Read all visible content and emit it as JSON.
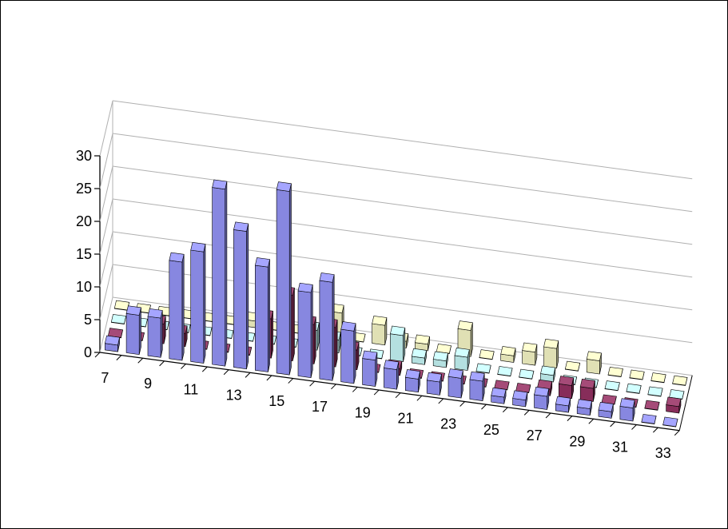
{
  "chart_data": {
    "type": "bar",
    "subtype": "3d-clustered-depth",
    "title": "",
    "xlabel": "",
    "ylabel": "",
    "ylim": [
      0,
      30
    ],
    "yticks": [
      0,
      5,
      10,
      15,
      20,
      25,
      30
    ],
    "grid": true,
    "legend": "none",
    "categories": [
      7,
      8,
      9,
      10,
      11,
      12,
      13,
      14,
      15,
      16,
      17,
      18,
      19,
      20,
      21,
      22,
      23,
      24,
      25,
      26,
      27,
      28,
      29,
      30,
      31,
      32,
      33
    ],
    "x_tick_labels": [
      "7",
      "9",
      "11",
      "13",
      "15",
      "17",
      "19",
      "21",
      "23",
      "25",
      "27",
      "29",
      "31",
      "33"
    ],
    "series": [
      {
        "color": "#9999FF",
        "values": [
          1,
          6,
          6,
          15,
          17,
          27,
          21,
          16,
          28,
          13,
          15,
          8,
          4,
          3,
          2,
          2,
          3,
          3,
          1,
          1,
          2,
          1,
          1,
          1,
          2,
          0,
          0
        ]
      },
      {
        "color": "#993366",
        "values": [
          0,
          0,
          3,
          2,
          0,
          0,
          0,
          6,
          10,
          6,
          6,
          3,
          0,
          1,
          0,
          0,
          0,
          0,
          0,
          0,
          1,
          2,
          2,
          0,
          0,
          0,
          1
        ]
      },
      {
        "color": "#CCFFFF",
        "values": [
          0,
          0,
          0,
          0,
          0,
          0,
          0,
          0,
          0,
          3,
          2,
          0,
          0,
          4,
          1,
          1,
          2,
          0,
          0,
          0,
          1,
          0,
          0,
          0,
          0,
          0,
          0
        ]
      },
      {
        "color": "#FFFFCC",
        "values": [
          0,
          0,
          0,
          0,
          0,
          0,
          1,
          0,
          0,
          0,
          4,
          0,
          3,
          1,
          1,
          0,
          4,
          0,
          1,
          2,
          3,
          0,
          2,
          0,
          0,
          0,
          0
        ]
      }
    ]
  }
}
